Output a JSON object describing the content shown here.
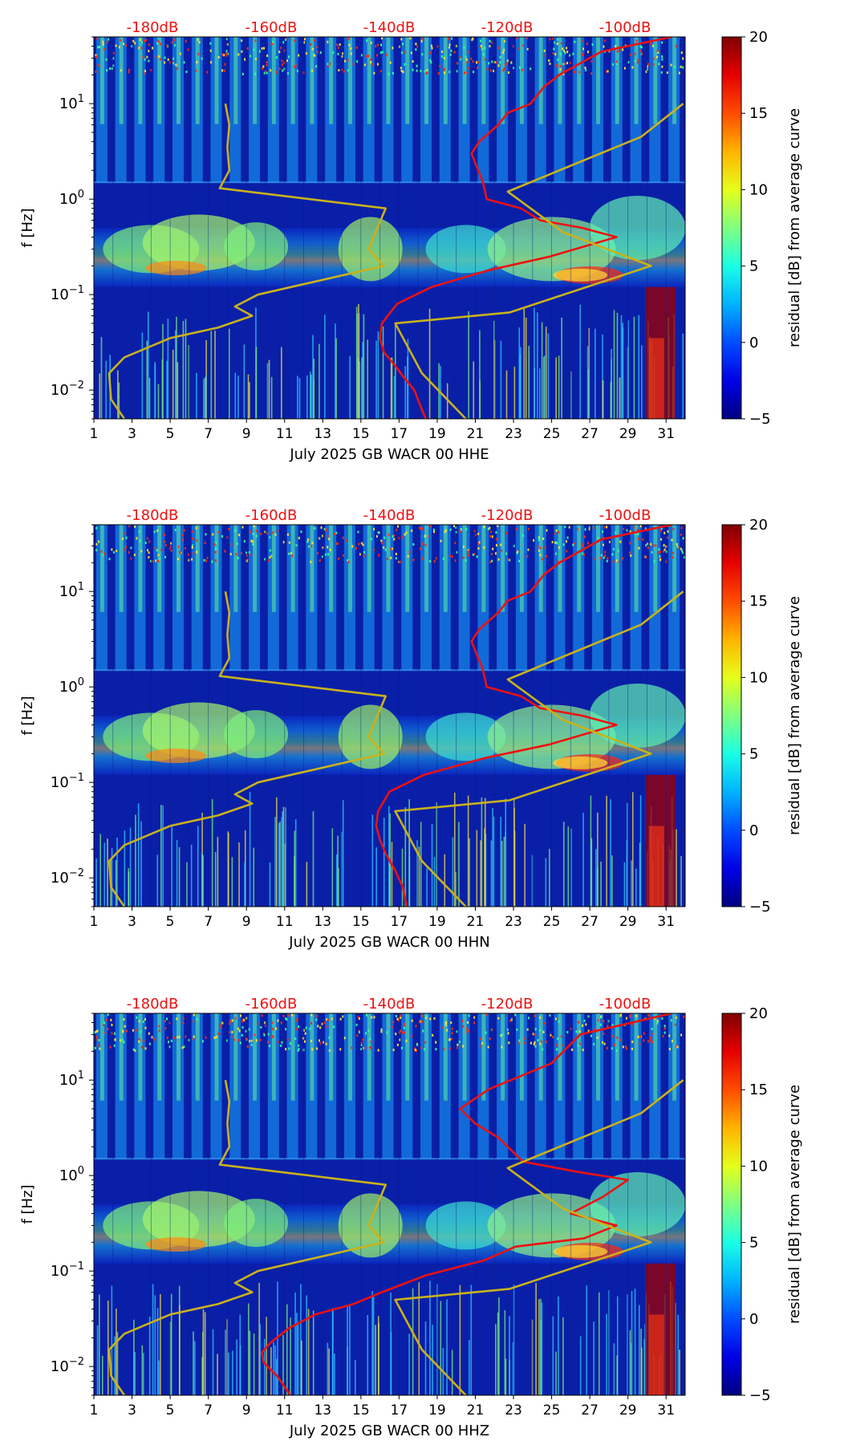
{
  "figure": {
    "colorbar": {
      "label": "residual [dB] from average curve",
      "ticks": [
        -5,
        0,
        5,
        10,
        15,
        20
      ],
      "range": [
        -5,
        20
      ]
    },
    "colors": {
      "nlnm_curve": "#c9b21c",
      "average_curve": "#ee1111",
      "db_scale_text": "#ee1111"
    }
  },
  "chart_data": [
    {
      "type": "heatmap",
      "title": "",
      "xlabel": "July 2025 GB WACR 00 HHE",
      "ylabel": "f [Hz]",
      "x_ticks": [
        "1",
        "3",
        "5",
        "7",
        "9",
        "11",
        "13",
        "15",
        "17",
        "19",
        "21",
        "23",
        "25",
        "27",
        "29",
        "31"
      ],
      "xlim": [
        1,
        32
      ],
      "ylim": [
        0.005,
        50
      ],
      "y_scale": "log",
      "y_ticks": [
        "10^-2",
        "10^-1",
        "10^0",
        "10^1"
      ],
      "db_scale": [
        "-180dB",
        "-160dB",
        "-140dB",
        "-120dB",
        "-100dB"
      ],
      "series": [
        {
          "name": "model-noise-curve",
          "x": [
            2.6,
            1.9,
            1.8,
            2.6,
            5,
            7.5,
            9.3,
            8.4,
            9.6,
            16.2,
            15.4,
            16.3,
            7.6,
            8.1,
            8.0,
            8.1,
            7.9
          ],
          "y": [
            0.005,
            0.008,
            0.015,
            0.022,
            0.035,
            0.045,
            0.06,
            0.075,
            0.1,
            0.2,
            0.3,
            0.8,
            1.3,
            2.0,
            3.5,
            6.0,
            10
          ]
        },
        {
          "name": "average-psd-curve",
          "x": [
            18.4,
            18.1,
            17.8,
            17.2,
            16.8,
            16.2,
            16.0,
            16.1,
            16.9,
            18.7,
            21.7,
            24.9,
            28.4,
            26.6,
            24.4,
            23.4,
            21.6,
            21.4,
            20.8,
            21.2,
            22.2,
            22.7,
            23.9,
            24.6,
            25.4,
            27.6,
            31.3
          ],
          "y": [
            0.005,
            0.007,
            0.01,
            0.014,
            0.018,
            0.025,
            0.035,
            0.05,
            0.08,
            0.12,
            0.18,
            0.25,
            0.4,
            0.5,
            0.6,
            0.8,
            1.0,
            1.5,
            3.0,
            4.0,
            6.0,
            8.0,
            10,
            15,
            20,
            35,
            50
          ]
        },
        {
          "name": "high-noise-curve",
          "x": [
            20.5,
            18.2,
            16.8,
            22.8,
            30.2,
            25.6,
            22.7,
            29.7,
            31.9
          ],
          "y": [
            0.005,
            0.015,
            0.05,
            0.065,
            0.2,
            0.45,
            1.2,
            4.5,
            10
          ]
        }
      ]
    },
    {
      "type": "heatmap",
      "title": "",
      "xlabel": "July 2025 GB WACR 00 HHN",
      "ylabel": "f [Hz]",
      "x_ticks": [
        "1",
        "3",
        "5",
        "7",
        "9",
        "11",
        "13",
        "15",
        "17",
        "19",
        "21",
        "23",
        "25",
        "27",
        "29",
        "31"
      ],
      "xlim": [
        1,
        32
      ],
      "ylim": [
        0.005,
        50
      ],
      "y_scale": "log",
      "y_ticks": [
        "10^-2",
        "10^-1",
        "10^0",
        "10^1"
      ],
      "db_scale": [
        "-180dB",
        "-160dB",
        "-140dB",
        "-120dB",
        "-100dB"
      ],
      "series": [
        {
          "name": "model-noise-curve",
          "x": [
            2.6,
            1.9,
            1.8,
            2.6,
            5,
            7.5,
            9.3,
            8.4,
            9.6,
            16.2,
            15.4,
            16.3,
            7.6,
            8.1,
            8.0,
            8.1,
            7.9
          ],
          "y": [
            0.005,
            0.008,
            0.015,
            0.022,
            0.035,
            0.045,
            0.06,
            0.075,
            0.1,
            0.2,
            0.3,
            0.8,
            1.3,
            2.0,
            3.5,
            6.0,
            10
          ]
        },
        {
          "name": "average-psd-curve",
          "x": [
            17.4,
            17.2,
            16.8,
            16.3,
            16.0,
            15.8,
            15.9,
            16.5,
            18.3,
            21.5,
            24.9,
            28.4,
            26.6,
            24.4,
            23.4,
            21.6,
            21.4,
            20.8,
            21.2,
            22.2,
            22.7,
            23.9,
            24.6,
            25.4,
            27.6,
            31.3
          ],
          "y": [
            0.005,
            0.008,
            0.012,
            0.018,
            0.025,
            0.035,
            0.05,
            0.08,
            0.12,
            0.18,
            0.25,
            0.4,
            0.5,
            0.6,
            0.8,
            1.0,
            1.5,
            3.0,
            4.0,
            6.0,
            8.0,
            10,
            15,
            20,
            35,
            50
          ]
        },
        {
          "name": "high-noise-curve",
          "x": [
            20.5,
            18.2,
            16.8,
            22.8,
            30.2,
            25.6,
            22.7,
            29.7,
            31.9
          ],
          "y": [
            0.005,
            0.015,
            0.05,
            0.065,
            0.2,
            0.45,
            1.2,
            4.5,
            10
          ]
        }
      ]
    },
    {
      "type": "heatmap",
      "title": "",
      "xlabel": "July 2025 GB WACR 00 HHZ",
      "ylabel": "f [Hz]",
      "x_ticks": [
        "1",
        "3",
        "5",
        "7",
        "9",
        "11",
        "13",
        "15",
        "17",
        "19",
        "21",
        "23",
        "25",
        "27",
        "29",
        "31"
      ],
      "xlim": [
        1,
        32
      ],
      "ylim": [
        0.005,
        50
      ],
      "y_scale": "log",
      "y_ticks": [
        "10^-2",
        "10^-1",
        "10^0",
        "10^1"
      ],
      "db_scale": [
        "-180dB",
        "-160dB",
        "-140dB",
        "-120dB",
        "-100dB"
      ],
      "series": [
        {
          "name": "model-noise-curve",
          "x": [
            2.6,
            1.9,
            1.8,
            2.6,
            5,
            7.5,
            9.3,
            8.4,
            9.6,
            16.2,
            15.4,
            16.3,
            7.6,
            8.1,
            8.0,
            8.1,
            7.9
          ],
          "y": [
            0.005,
            0.008,
            0.015,
            0.022,
            0.035,
            0.045,
            0.06,
            0.075,
            0.1,
            0.2,
            0.3,
            0.8,
            1.3,
            2.0,
            3.5,
            6.0,
            10
          ]
        },
        {
          "name": "average-psd-curve",
          "x": [
            11.3,
            10.6,
            9.9,
            9.8,
            10.3,
            11.2,
            12.6,
            14.6,
            16.1,
            18.4,
            21.5,
            23.1,
            26.7,
            28.4,
            26.0,
            27.7,
            29.0,
            26.3,
            23.5,
            22.2,
            21.0,
            20.2,
            21.7,
            25.0,
            26.5,
            31.3
          ],
          "y": [
            0.005,
            0.008,
            0.011,
            0.014,
            0.018,
            0.025,
            0.035,
            0.045,
            0.06,
            0.09,
            0.13,
            0.18,
            0.22,
            0.3,
            0.4,
            0.6,
            0.9,
            1.1,
            1.4,
            2.5,
            3.5,
            5.0,
            8.0,
            15,
            30,
            50
          ]
        },
        {
          "name": "high-noise-curve",
          "x": [
            20.5,
            18.2,
            16.8,
            22.8,
            30.2,
            25.6,
            22.7,
            29.7,
            31.9
          ],
          "y": [
            0.005,
            0.015,
            0.05,
            0.065,
            0.2,
            0.45,
            1.2,
            4.5,
            10
          ]
        }
      ]
    }
  ]
}
